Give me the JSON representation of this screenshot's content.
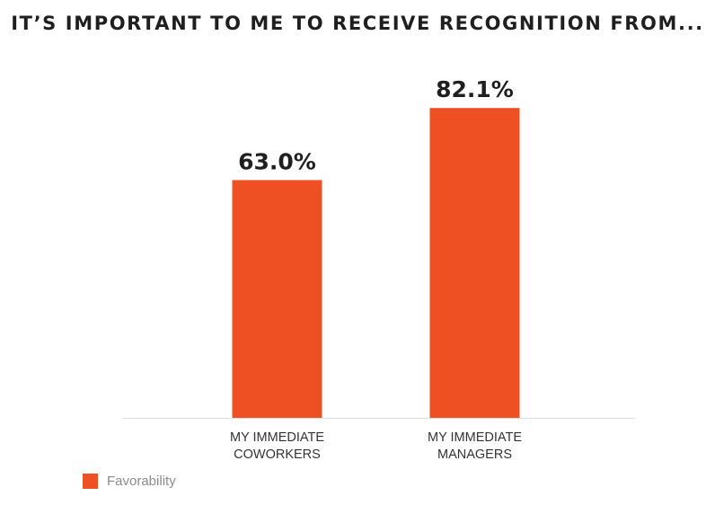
{
  "chart_data": {
    "type": "bar",
    "title": "IT’S IMPORTANT TO ME TO RECEIVE RECOGNITION FROM...",
    "categories": [
      [
        "MY IMMEDIATE",
        "COWORKERS"
      ],
      [
        "MY IMMEDIATE",
        "MANAGERS"
      ]
    ],
    "series": [
      {
        "name": "Favorability",
        "values": [
          63.0,
          82.1
        ],
        "labels": [
          "63.0%",
          "82.1%"
        ]
      }
    ],
    "ylim": [
      0,
      100
    ],
    "grid": false,
    "legend_position": "bottom-left",
    "colors": {
      "bar": "#ef5023",
      "baseline": "#dddddd",
      "value_label": "#1f1f1f",
      "category_label": "#333333"
    }
  }
}
